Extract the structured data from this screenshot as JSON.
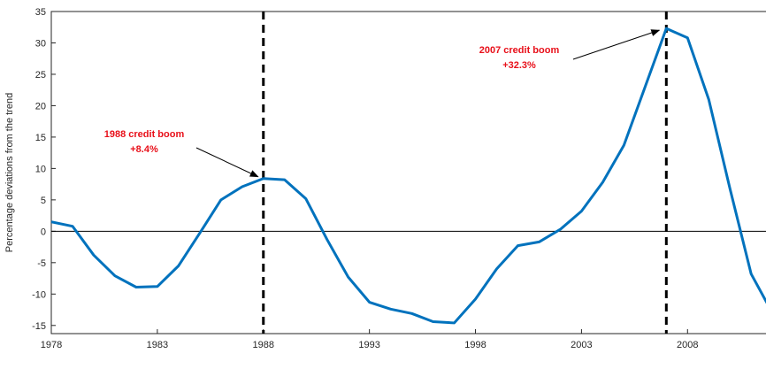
{
  "chart_data": {
    "type": "line",
    "y_label": "Percentage deviations from the trend",
    "x": [
      1978,
      1979,
      1980,
      1981,
      1982,
      1983,
      1984,
      1985,
      1986,
      1987,
      1988,
      1989,
      1990,
      1991,
      1992,
      1993,
      1994,
      1995,
      1996,
      1997,
      1998,
      1999,
      2000,
      2001,
      2002,
      2003,
      2004,
      2005,
      2006,
      2007,
      2008,
      2009,
      2010,
      2011,
      2012
    ],
    "series": [
      {
        "color": "#0072bd",
        "values": [
          1.5,
          0.8,
          -3.8,
          -7.1,
          -8.9,
          -8.8,
          -5.5,
          -0.3,
          5.0,
          7.1,
          8.4,
          8.2,
          5.2,
          -1.3,
          -7.3,
          -11.3,
          -12.4,
          -13.1,
          -14.4,
          -14.6,
          -10.8,
          -6.0,
          -2.3,
          -1.7,
          0.3,
          3.2,
          7.8,
          13.7,
          23.0,
          32.3,
          30.8,
          21.0,
          6.8,
          -6.8,
          -13.0
        ]
      }
    ],
    "xlim": [
      1978,
      2011.7
    ],
    "ylim": [
      -16.3,
      35
    ],
    "xticks": [
      1978,
      1983,
      1988,
      1993,
      1998,
      2003,
      2008
    ],
    "yticks": [
      -15,
      -10,
      -5,
      0,
      5,
      10,
      15,
      20,
      25,
      30,
      35
    ],
    "vlines": [
      1988,
      2007
    ],
    "annotations": [
      {
        "lines": [
          "1988 credit boom",
          "+8.4%"
        ],
        "x": 1988,
        "y": 8.4
      },
      {
        "lines": [
          "2007 credit boom",
          "+32.3%"
        ],
        "x": 2007,
        "y": 32.3
      }
    ]
  }
}
